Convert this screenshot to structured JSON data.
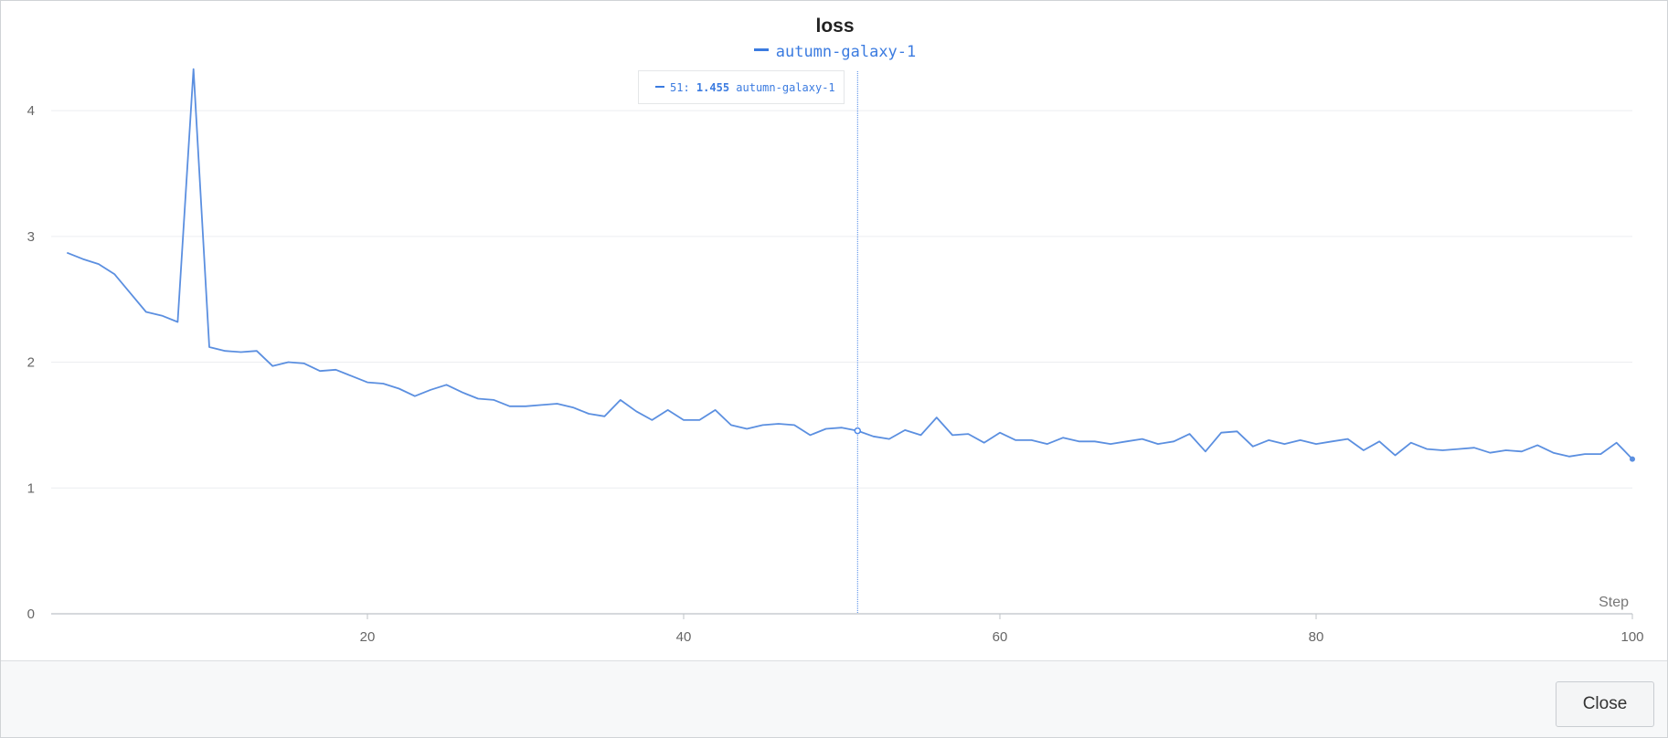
{
  "chart_data": {
    "type": "line",
    "title": "loss",
    "xlabel": "Step",
    "ylabel": "",
    "xlim": [
      0,
      100
    ],
    "ylim": [
      0,
      4.4
    ],
    "x_ticks": [
      "20",
      "40",
      "60",
      "80",
      "100"
    ],
    "y_ticks": [
      "0",
      "1",
      "2",
      "3",
      "4"
    ],
    "grid": "horizontal",
    "legend_position": "top-center",
    "series": [
      {
        "name": "autumn-galaxy-1",
        "color": "#5b8fe0",
        "x": [
          1,
          2,
          3,
          4,
          5,
          6,
          7,
          8,
          9,
          10,
          11,
          12,
          13,
          14,
          15,
          16,
          17,
          18,
          19,
          20,
          21,
          22,
          23,
          24,
          25,
          26,
          27,
          28,
          29,
          30,
          31,
          32,
          33,
          34,
          35,
          36,
          37,
          38,
          39,
          40,
          41,
          42,
          43,
          44,
          45,
          46,
          47,
          48,
          49,
          50,
          51,
          52,
          53,
          54,
          55,
          56,
          57,
          58,
          59,
          60,
          61,
          62,
          63,
          64,
          65,
          66,
          67,
          68,
          69,
          70,
          71,
          72,
          73,
          74,
          75,
          76,
          77,
          78,
          79,
          80,
          81,
          82,
          83,
          84,
          85,
          86,
          87,
          88,
          89,
          90,
          91,
          92,
          93,
          94,
          95,
          96,
          97,
          98,
          99,
          100
        ],
        "values": [
          2.87,
          2.82,
          2.78,
          2.7,
          2.55,
          2.4,
          2.37,
          2.32,
          4.33,
          2.12,
          2.09,
          2.08,
          2.09,
          1.97,
          2.0,
          1.99,
          1.93,
          1.94,
          1.89,
          1.84,
          1.83,
          1.79,
          1.73,
          1.78,
          1.82,
          1.76,
          1.71,
          1.7,
          1.65,
          1.65,
          1.66,
          1.67,
          1.64,
          1.59,
          1.57,
          1.7,
          1.61,
          1.54,
          1.62,
          1.54,
          1.54,
          1.62,
          1.5,
          1.47,
          1.5,
          1.51,
          1.5,
          1.42,
          1.47,
          1.48,
          1.455,
          1.41,
          1.39,
          1.46,
          1.42,
          1.56,
          1.42,
          1.43,
          1.36,
          1.44,
          1.38,
          1.38,
          1.35,
          1.4,
          1.37,
          1.37,
          1.35,
          1.37,
          1.39,
          1.35,
          1.37,
          1.43,
          1.29,
          1.44,
          1.45,
          1.33,
          1.38,
          1.35,
          1.38,
          1.35,
          1.37,
          1.39,
          1.3,
          1.37,
          1.26,
          1.36,
          1.31,
          1.3,
          1.31,
          1.32,
          1.28,
          1.3,
          1.29,
          1.34,
          1.28,
          1.25,
          1.27,
          1.27,
          1.36,
          1.23
        ]
      }
    ],
    "hover": {
      "step": "51",
      "step_label": "51:",
      "value_label": "1.455",
      "value": 1.455,
      "run": "autumn-galaxy-1"
    }
  },
  "footer": {
    "close_label": "Close"
  }
}
